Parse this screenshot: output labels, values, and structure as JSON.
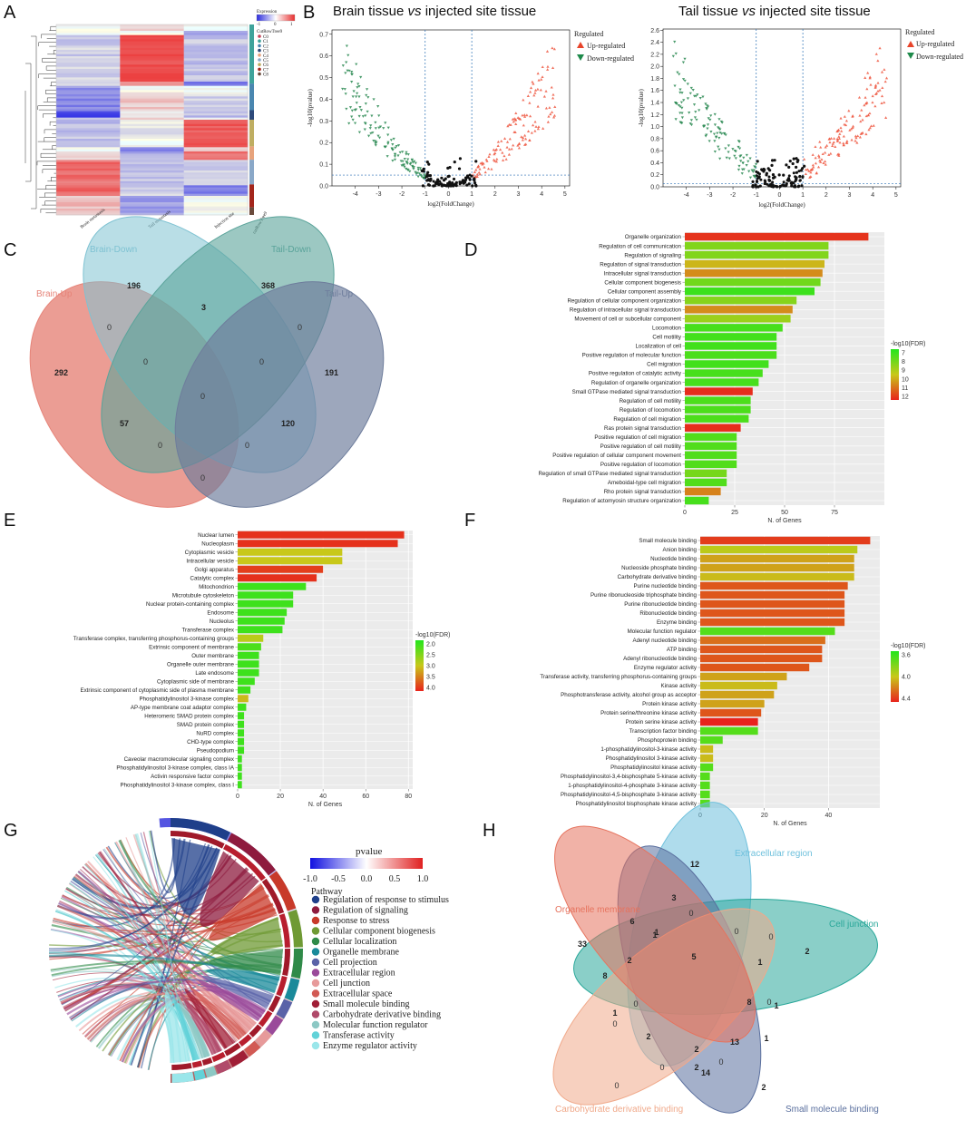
{
  "panels": {
    "A": "A",
    "B": "B",
    "C": "C",
    "D": "D",
    "E": "E",
    "F": "F",
    "G": "G",
    "H": "H"
  },
  "heatmap": {
    "legend_title": "Expression",
    "legend_ticks": [
      "-1",
      "0",
      "1"
    ],
    "cluster_title": "CutRowTree9",
    "clusters": [
      "C0",
      "C1",
      "C2",
      "C3",
      "C4",
      "C5",
      "C6",
      "C7",
      "C8"
    ],
    "cluster_colors": [
      "#c4455a",
      "#3fa39b",
      "#4a87b0",
      "#2e4a7a",
      "#e7a37c",
      "#8aa8c8",
      "#bfae62",
      "#a3261c",
      "#6b4b3c"
    ],
    "columns": [
      "Brain metastasis",
      "Tail metastasis",
      "Injection site"
    ],
    "side_label": "cutRowTree9"
  },
  "volcano": {
    "left_title_a": "Brain tissue ",
    "left_title_vs": "vs",
    "left_title_b": " injected site tissue",
    "right_title_a": "Tail tissue ",
    "right_title_vs": "vs",
    "right_title_b": " injected site tissue",
    "xlabel": "log2(FoldChange)",
    "ylabel": "-log10(pvalue)",
    "legend_title": "Regulated",
    "legend_up": "Up-regulated",
    "legend_down": "Down-regulated",
    "left_yticks": [
      "0.0",
      "0.1",
      "0.2",
      "0.3",
      "0.4",
      "0.5",
      "0.6",
      "0.7"
    ],
    "right_yticks": [
      "0.0",
      "0.2",
      "0.4",
      "0.6",
      "0.8",
      "1.0",
      "1.2",
      "1.4",
      "1.6",
      "1.8",
      "2.0",
      "2.2",
      "2.4",
      "2.6"
    ],
    "xticks": [
      "-4",
      "-3",
      "-2",
      "-1",
      "0",
      "1",
      "2",
      "3",
      "4",
      "5"
    ]
  },
  "venn4": {
    "sets": [
      "Brain-Down",
      "Tail-Down",
      "Brain-Up",
      "Tail-Up"
    ],
    "counts": [
      "196",
      "368",
      "292",
      "191",
      "3",
      "57",
      "120",
      "0",
      "0",
      "0",
      "0",
      "0",
      "0",
      "0",
      "0"
    ]
  },
  "chart_data": [
    {
      "type": "bar",
      "panel": "D",
      "xlabel": "N. of Genes",
      "xlim": [
        0,
        100
      ],
      "xticks": [
        "0",
        "25",
        "50",
        "75"
      ],
      "legend_title": "-log10(FDR)",
      "legend_ticks": [
        "7",
        "8",
        "9",
        "10",
        "11",
        "12"
      ],
      "color_range": [
        6.5,
        12.8
      ],
      "categories": [
        "Organelle organization",
        "Regulation of cell communication",
        "Regulation of signaling",
        "Regulation of signal transduction",
        "Intracellular signal transduction",
        "Cellular component biogenesis",
        "Cellular component assembly",
        "Regulation of cellular component organization",
        "Regulation of intracellular signal transduction",
        "Movement of cell or subcellular component",
        "Locomotion",
        "Cell motility",
        "Localization of cell",
        "Positive regulation of molecular function",
        "Cell migration",
        "Positive regulation of catalytic activity",
        "Regulation of organelle organization",
        "Small GTPase mediated signal transduction",
        "Regulation of cell motility",
        "Regulation of locomotion",
        "Regulation of cell migration",
        "Ras protein signal transduction",
        "Positive regulation of cell migration",
        "Positive regulation of cell motility",
        "Positive regulation of cellular component movement",
        "Positive regulation of locomotion",
        "Regulation of small GTPase mediated signal transduction",
        "Ameboidal-type cell migration",
        "Rho protein signal transduction",
        "Regulation of actomyosin structure organization"
      ],
      "values": [
        92,
        72,
        72,
        70,
        69,
        68,
        65,
        56,
        54,
        53,
        49,
        46,
        46,
        46,
        42,
        39,
        37,
        34,
        33,
        33,
        32,
        28,
        26,
        26,
        26,
        26,
        21,
        21,
        18,
        12
      ],
      "color_values": [
        12.5,
        8.3,
        8.3,
        10,
        10.8,
        8,
        7,
        8.4,
        10.8,
        8.8,
        7.2,
        7.1,
        7.1,
        7.3,
        7.1,
        7.2,
        7.2,
        12.6,
        7.3,
        7.3,
        7.3,
        12.6,
        7.4,
        7.4,
        7.4,
        7.4,
        8.1,
        7.4,
        11,
        7.2
      ]
    },
    {
      "type": "bar",
      "panel": "E",
      "xlabel": "N. of Genes",
      "xlim": [
        0,
        82
      ],
      "xticks": [
        "0",
        "20",
        "40",
        "60",
        "80"
      ],
      "legend_title": "-log10(FDR)",
      "legend_ticks": [
        "2.0",
        "2.5",
        "3.0",
        "3.5",
        "4.0"
      ],
      "color_range": [
        1.8,
        4.2
      ],
      "categories": [
        "Nuclear lumen",
        "Nucleoplasm",
        "Cytoplasmic vesicle",
        "Intracellular vesicle",
        "Golgi apparatus",
        "Catalytic complex",
        "Mitochondrion",
        "Microtubule cytoskeleton",
        "Nuclear protein-containing complex",
        "Endosome",
        "Nucleolus",
        "Transferase complex",
        "Transferase complex, transferring phosphorus-containing groups",
        "Extrinsic component of membrane",
        "Outer membrane",
        "Organelle outer membrane",
        "Late endosome",
        "Cytoplasmic side of membrane",
        "Extrinsic component of cytoplasmic side of plasma membrane",
        "Phosphatidylinositol 3-kinase complex",
        "AP-type membrane coat adaptor complex",
        "Heteromeric SMAD protein complex",
        "SMAD protein complex",
        "NuRD complex",
        "CHD-type complex",
        "Pseudopodium",
        "Caveolar macromolecular signaling complex",
        "Phosphatidylinositol 3-kinase complex, class IA",
        "Activin responsive factor complex",
        "Phosphatidylinositol 3-kinase complex, class I"
      ],
      "values": [
        78,
        75,
        49,
        49,
        40,
        37,
        32,
        26,
        26,
        23,
        22,
        21,
        12,
        11,
        10,
        10,
        10,
        8,
        6,
        5,
        4,
        3,
        3,
        3,
        3,
        3,
        2,
        2,
        2,
        2
      ],
      "color_values": [
        4.1,
        4.1,
        3.0,
        3.0,
        4.0,
        4.1,
        2.0,
        2.0,
        2.0,
        2.0,
        2.0,
        2.0,
        2.9,
        2.1,
        2.0,
        2.0,
        2.0,
        2.0,
        2.0,
        3.1,
        2.0,
        2.0,
        2.0,
        2.0,
        2.0,
        2.0,
        2.0,
        2.0,
        2.0,
        2.0
      ]
    },
    {
      "type": "bar",
      "panel": "F",
      "xlabel": "N. of Genes",
      "xlim": [
        0,
        56
      ],
      "xticks": [
        "0",
        "20",
        "40"
      ],
      "legend_title": "-log10(FDR)",
      "legend_ticks": [
        "3.6",
        "4.0",
        "4.4"
      ],
      "color_range": [
        3.3,
        4.6
      ],
      "categories": [
        "Small molecule binding",
        "Anion binding",
        "Nucleotide binding",
        "Nucleoside phosphate binding",
        "Carbohydrate derivative binding",
        "Purine nucleotide binding",
        "Purine ribonucleoside triphosphate binding",
        "Purine ribonucleotide binding",
        "Ribonucleotide binding",
        "Enzyme binding",
        "Molecular function regulator",
        "Adenyl nucleotide binding",
        "ATP binding",
        "Adenyl ribonucleotide binding",
        "Enzyme regulator activity",
        "Transferase activity, transferring phosphorus-containing groups",
        "Kinase activity",
        "Phosphotransferase activity, alcohol group as acceptor",
        "Protein kinase activity",
        "Protein serine/threonine kinase activity",
        "Protein serine kinase activity",
        "Transcription factor binding",
        "Phosphoprotein binding",
        "1-phosphatidylinositol-3-kinase activity",
        "Phosphatidylinositol 3-kinase activity",
        "Phosphatidylinositol kinase activity",
        "Phosphatidylinositol-3,4-bisphosphate 5-kinase activity",
        "1-phosphatidylinositol-4-phosphate 3-kinase activity",
        "Phosphatidylinositol-4,5-bisphosphate 3-kinase activity",
        "Phosphatidylinositol bisphosphate kinase activity"
      ],
      "values": [
        53,
        49,
        48,
        48,
        48,
        46,
        45,
        45,
        45,
        45,
        42,
        39,
        38,
        38,
        34,
        27,
        24,
        23,
        20,
        19,
        18,
        18,
        7,
        4,
        4,
        4,
        3,
        3,
        3,
        3
      ],
      "color_values": [
        4.5,
        3.9,
        4.1,
        4.1,
        4.0,
        4.4,
        4.4,
        4.4,
        4.4,
        4.4,
        3.5,
        4.3,
        4.4,
        4.4,
        4.4,
        4.1,
        4.0,
        4.1,
        4.1,
        4.4,
        4.6,
        3.5,
        3.5,
        4.0,
        4.0,
        3.5,
        3.5,
        3.5,
        3.5,
        3.5
      ]
    },
    {
      "type": "heatmap",
      "panel": "G",
      "legend_title": "pvalue",
      "legend_ticks": [
        "-1.0",
        "-0.5",
        "0.0",
        "0.5",
        "1.0"
      ],
      "pathway_title": "Pathway",
      "pathways": [
        "Regulation of response to stimulus",
        "Regulation of signaling",
        "Response to stress",
        "Cellular component biogenesis",
        "Cellular localization",
        "Organelle membrane",
        "Cell projection",
        "Extracellular region",
        "Cell junction",
        "Extracellular space",
        "Small molecule binding",
        "Carbohydrate derivative binding",
        "Molecular function regulator",
        "Transferase activity",
        "Enzyme regulator activity"
      ],
      "pathway_colors": [
        "#1f3f8a",
        "#8e1b3e",
        "#c83a2a",
        "#6f9a34",
        "#2f8a48",
        "#1a8a9a",
        "#5a63a8",
        "#9a4a9a",
        "#e79a9a",
        "#d25a54",
        "#a01e36",
        "#b04a6a",
        "#8cc8c4",
        "#62d2d8",
        "#9ae6ea"
      ]
    }
  ],
  "venn5": {
    "sets": [
      "Extracellular region",
      "Organelle membrane",
      "Cell junction",
      "Carbohydrate derivative binding",
      "Small molecule binding"
    ],
    "counts": [
      "12",
      "33",
      "2",
      "0",
      "2",
      "3",
      "6",
      "1",
      "0",
      "0",
      "0",
      "0",
      "8",
      "2",
      "1",
      "5",
      "8",
      "1",
      "1",
      "0",
      "1",
      "0",
      "1",
      "2",
      "13",
      "2",
      "0",
      "2",
      "14",
      "0"
    ]
  }
}
